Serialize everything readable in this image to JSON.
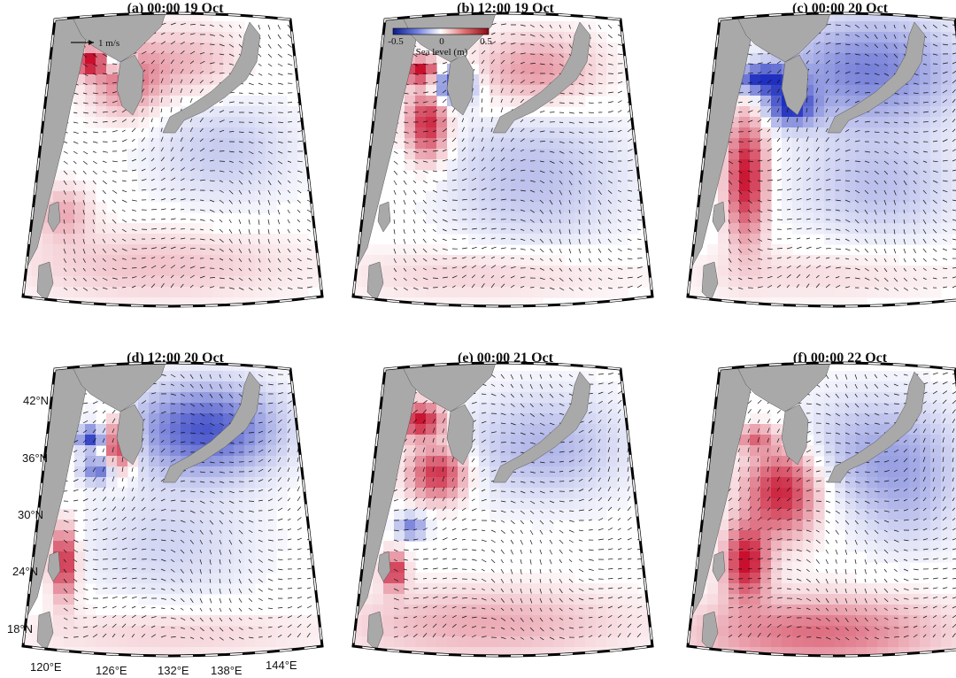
{
  "panels": [
    {
      "id": "a",
      "title": "(a) 00:00 19 Oct",
      "scenario": 0
    },
    {
      "id": "b",
      "title": "(b) 12:00 19 Oct",
      "scenario": 1
    },
    {
      "id": "c",
      "title": "(c) 00:00 20 Oct",
      "scenario": 2
    },
    {
      "id": "d",
      "title": "(d) 12:00 20 Oct",
      "scenario": 3
    },
    {
      "id": "e",
      "title": "(e) 00:00 21 Oct",
      "scenario": 4
    },
    {
      "id": "f",
      "title": "(f) 00:00 22 Oct",
      "scenario": 5
    }
  ],
  "colorbar": {
    "label": "Sea level (m)",
    "ticks": [
      "-0.5",
      "0",
      "0.5"
    ],
    "min": -0.5,
    "max": 0.5,
    "low_color": "#1f2fbf",
    "mid_color": "#ffffff",
    "high_color": "#c8102e"
  },
  "vector_scale": {
    "label": "1 m/s"
  },
  "lat_labels": [
    "42°N",
    "36°N",
    "30°N",
    "24°N",
    "18°N"
  ],
  "lon_labels": [
    "120°E",
    "126°E",
    "132°E",
    "138°E",
    "144°E"
  ],
  "colors": {
    "land": "#a9a9a9",
    "frame": "#000000",
    "arrow": "#111111"
  }
}
